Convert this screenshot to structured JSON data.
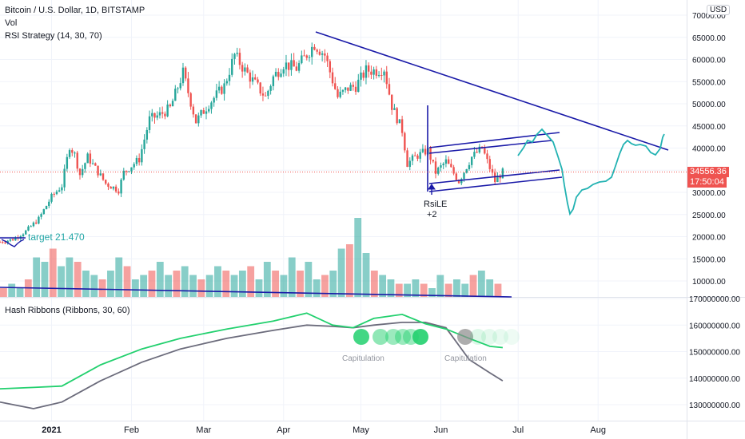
{
  "header": {
    "symbol_line": "Bitcoin / U.S. Dollar, 1D, BITSTAMP",
    "indicator_vol": "Vol",
    "indicator_rsi": "RSI Strategy (14, 30, 70)",
    "indicator_hash": "Hash Ribbons (Ribbons, 30, 60)",
    "currency_button": "USD"
  },
  "price_badge": {
    "value": "34556.36",
    "countdown": "17:50:04",
    "color": "#ef5350"
  },
  "annotations": {
    "target_label": "target  21.470",
    "rsile_label": "RsiLE",
    "rsile_qty": "+2",
    "capitulation_1": "Capitulation",
    "capitulation_2": "Capitulation"
  },
  "colors": {
    "bull": "#26a69a",
    "bear": "#ef5350",
    "trendline": "#1a1aa8",
    "projection": "#22b2b2",
    "ribbon_fast": "#22d06e",
    "ribbon_slow": "#6b6b7b",
    "ribbon_fill": "#ef5350"
  },
  "chart_data": [
    {
      "type": "candlestick",
      "title": "Bitcoin / U.S. Dollar, 1D, BITSTAMP",
      "ylim": [
        6500,
        72000
      ],
      "y_ticks": [
        "70000.00",
        "65000.00",
        "60000.00",
        "55000.00",
        "50000.00",
        "45000.00",
        "40000.00",
        "35000.00",
        "30000.00",
        "25000.00",
        "20000.00",
        "15000.00",
        "10000.00"
      ],
      "x_ticks": [
        "2021",
        "Feb",
        "Mar",
        "Apr",
        "May",
        "Jun",
        "Jul",
        "Aug"
      ],
      "close_path": [
        {
          "date": "2020-12-12",
          "price": 18800
        },
        {
          "date": "2020-12-17",
          "price": 19400
        },
        {
          "date": "2020-12-22",
          "price": 21200
        },
        {
          "date": "2020-12-27",
          "price": 24000
        },
        {
          "date": "2021-01-01",
          "price": 29000
        },
        {
          "date": "2021-01-05",
          "price": 31500
        },
        {
          "date": "2021-01-08",
          "price": 40500
        },
        {
          "date": "2021-01-10",
          "price": 38500
        },
        {
          "date": "2021-01-12",
          "price": 34000
        },
        {
          "date": "2021-01-15",
          "price": 38000
        },
        {
          "date": "2021-01-22",
          "price": 32000
        },
        {
          "date": "2021-01-27",
          "price": 30500
        },
        {
          "date": "2021-01-29",
          "price": 34500
        },
        {
          "date": "2021-02-04",
          "price": 37500
        },
        {
          "date": "2021-02-08",
          "price": 46500
        },
        {
          "date": "2021-02-12",
          "price": 47500
        },
        {
          "date": "2021-02-16",
          "price": 49000
        },
        {
          "date": "2021-02-21",
          "price": 57000
        },
        {
          "date": "2021-02-26",
          "price": 46000
        },
        {
          "date": "2021-03-03",
          "price": 50000
        },
        {
          "date": "2021-03-09",
          "price": 54000
        },
        {
          "date": "2021-03-13",
          "price": 61000
        },
        {
          "date": "2021-03-17",
          "price": 57500
        },
        {
          "date": "2021-03-25",
          "price": 51500
        },
        {
          "date": "2021-03-28",
          "price": 56000
        },
        {
          "date": "2021-04-01",
          "price": 59000
        },
        {
          "date": "2021-04-06",
          "price": 58000
        },
        {
          "date": "2021-04-13",
          "price": 63500
        },
        {
          "date": "2021-04-17",
          "price": 61000
        },
        {
          "date": "2021-04-22",
          "price": 51500
        },
        {
          "date": "2021-04-26",
          "price": 53500
        },
        {
          "date": "2021-04-29",
          "price": 54000
        },
        {
          "date": "2021-05-03",
          "price": 57500
        },
        {
          "date": "2021-05-07",
          "price": 57500
        },
        {
          "date": "2021-05-10",
          "price": 58000
        },
        {
          "date": "2021-05-13",
          "price": 49500
        },
        {
          "date": "2021-05-17",
          "price": 44000
        },
        {
          "date": "2021-05-19",
          "price": 36500
        },
        {
          "date": "2021-05-22",
          "price": 38000
        },
        {
          "date": "2021-05-27",
          "price": 39500
        },
        {
          "date": "2021-05-30",
          "price": 34500
        },
        {
          "date": "2021-06-03",
          "price": 37000
        },
        {
          "date": "2021-06-08",
          "price": 32500
        },
        {
          "date": "2021-06-13",
          "price": 38000
        },
        {
          "date": "2021-06-17",
          "price": 40000
        },
        {
          "date": "2021-06-22",
          "price": 32500
        },
        {
          "date": "2021-06-25",
          "price": 34556
        }
      ],
      "last_price": 34556.36
    },
    {
      "type": "bar",
      "title": "Vol",
      "series": [
        {
          "name": "Vol",
          "values": [
            2,
            3,
            2,
            4,
            9,
            8,
            11,
            7,
            9,
            8,
            6,
            5,
            4,
            6,
            9,
            7,
            4,
            5,
            6,
            8,
            5,
            6,
            7,
            5,
            4,
            5,
            7,
            6,
            5,
            6,
            7,
            4,
            8,
            6,
            5,
            9,
            6,
            8,
            4,
            5,
            6,
            11,
            12,
            18,
            10,
            6,
            5,
            4,
            3,
            3,
            4,
            3,
            2,
            5,
            3,
            4,
            3,
            5,
            6,
            4,
            3
          ]
        }
      ]
    },
    {
      "type": "line",
      "title": "Hash Ribbons (Ribbons, 30, 60)",
      "ylim": [
        125000000,
        170000000
      ],
      "y_ticks": [
        "170000000.00",
        "160000000.00",
        "150000000.00",
        "140000000.00",
        "130000000.00"
      ],
      "series": [
        {
          "name": "Ribbons",
          "points": [
            {
              "date": "2020-12-12",
              "value": 136000000
            },
            {
              "date": "2020-12-25",
              "value": 136500000
            },
            {
              "date": "2021-01-05",
              "value": 137000000
            },
            {
              "date": "2021-01-20",
              "value": 145000000
            },
            {
              "date": "2021-02-05",
              "value": 151000000
            },
            {
              "date": "2021-02-20",
              "value": 155000000
            },
            {
              "date": "2021-03-10",
              "value": 158500000
            },
            {
              "date": "2021-03-28",
              "value": 161500000
            },
            {
              "date": "2021-04-10",
              "value": 164500000
            },
            {
              "date": "2021-04-20",
              "value": 160000000
            },
            {
              "date": "2021-04-28",
              "value": 159000000
            },
            {
              "date": "2021-05-06",
              "value": 162500000
            },
            {
              "date": "2021-05-17",
              "value": 164000000
            },
            {
              "date": "2021-05-26",
              "value": 160500000
            },
            {
              "date": "2021-06-03",
              "value": 158500000
            },
            {
              "date": "2021-06-12",
              "value": 155000000
            },
            {
              "date": "2021-06-20",
              "value": 152000000
            },
            {
              "date": "2021-06-25",
              "value": 151500000
            }
          ]
        },
        {
          "name": "Ribbons slow",
          "points": [
            {
              "date": "2020-12-12",
              "value": 131000000
            },
            {
              "date": "2020-12-25",
              "value": 128500000
            },
            {
              "date": "2021-01-05",
              "value": 131000000
            },
            {
              "date": "2021-01-20",
              "value": 139000000
            },
            {
              "date": "2021-02-05",
              "value": 146000000
            },
            {
              "date": "2021-02-20",
              "value": 151000000
            },
            {
              "date": "2021-03-10",
              "value": 155000000
            },
            {
              "date": "2021-03-28",
              "value": 158000000
            },
            {
              "date": "2021-04-10",
              "value": 160000000
            },
            {
              "date": "2021-04-20",
              "value": 159500000
            },
            {
              "date": "2021-04-28",
              "value": 159000000
            },
            {
              "date": "2021-05-06",
              "value": 160000000
            },
            {
              "date": "2021-05-17",
              "value": 161000000
            },
            {
              "date": "2021-05-26",
              "value": 161000000
            },
            {
              "date": "2021-06-03",
              "value": 159000000
            },
            {
              "date": "2021-06-12",
              "value": 147000000
            },
            {
              "date": "2021-06-20",
              "value": 142000000
            },
            {
              "date": "2021-06-25",
              "value": 139000000
            }
          ]
        }
      ]
    }
  ]
}
